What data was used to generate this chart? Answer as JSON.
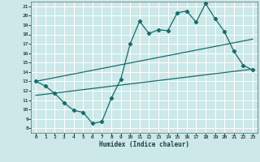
{
  "xlabel": "Humidex (Indice chaleur)",
  "xlim": [
    -0.5,
    23.5
  ],
  "ylim": [
    7.5,
    21.5
  ],
  "yticks": [
    8,
    9,
    10,
    11,
    12,
    13,
    14,
    15,
    16,
    17,
    18,
    19,
    20,
    21
  ],
  "xticks": [
    0,
    1,
    2,
    3,
    4,
    5,
    6,
    7,
    8,
    9,
    10,
    11,
    12,
    13,
    14,
    15,
    16,
    17,
    18,
    19,
    20,
    21,
    22,
    23
  ],
  "bg_color": "#cce8e8",
  "grid_color": "#ffffff",
  "line_color": "#1a6b6b",
  "line1_x": [
    0,
    1,
    2,
    3,
    4,
    5,
    6,
    7,
    8,
    9,
    10,
    11,
    12,
    13,
    14,
    15,
    16,
    17,
    18,
    19,
    20,
    21,
    22,
    23
  ],
  "line1_y": [
    13.0,
    12.5,
    11.7,
    10.7,
    9.9,
    9.7,
    8.5,
    8.7,
    11.2,
    13.2,
    17.0,
    19.4,
    18.1,
    18.5,
    18.4,
    20.3,
    20.5,
    19.3,
    21.3,
    19.7,
    18.3,
    16.2,
    14.7,
    14.2
  ],
  "line2_x": [
    0,
    23
  ],
  "line2_y": [
    13.0,
    17.5
  ],
  "line3_x": [
    0,
    23
  ],
  "line3_y": [
    11.5,
    14.3
  ],
  "marker": "D",
  "marker_size": 2.2,
  "linewidth": 0.9
}
